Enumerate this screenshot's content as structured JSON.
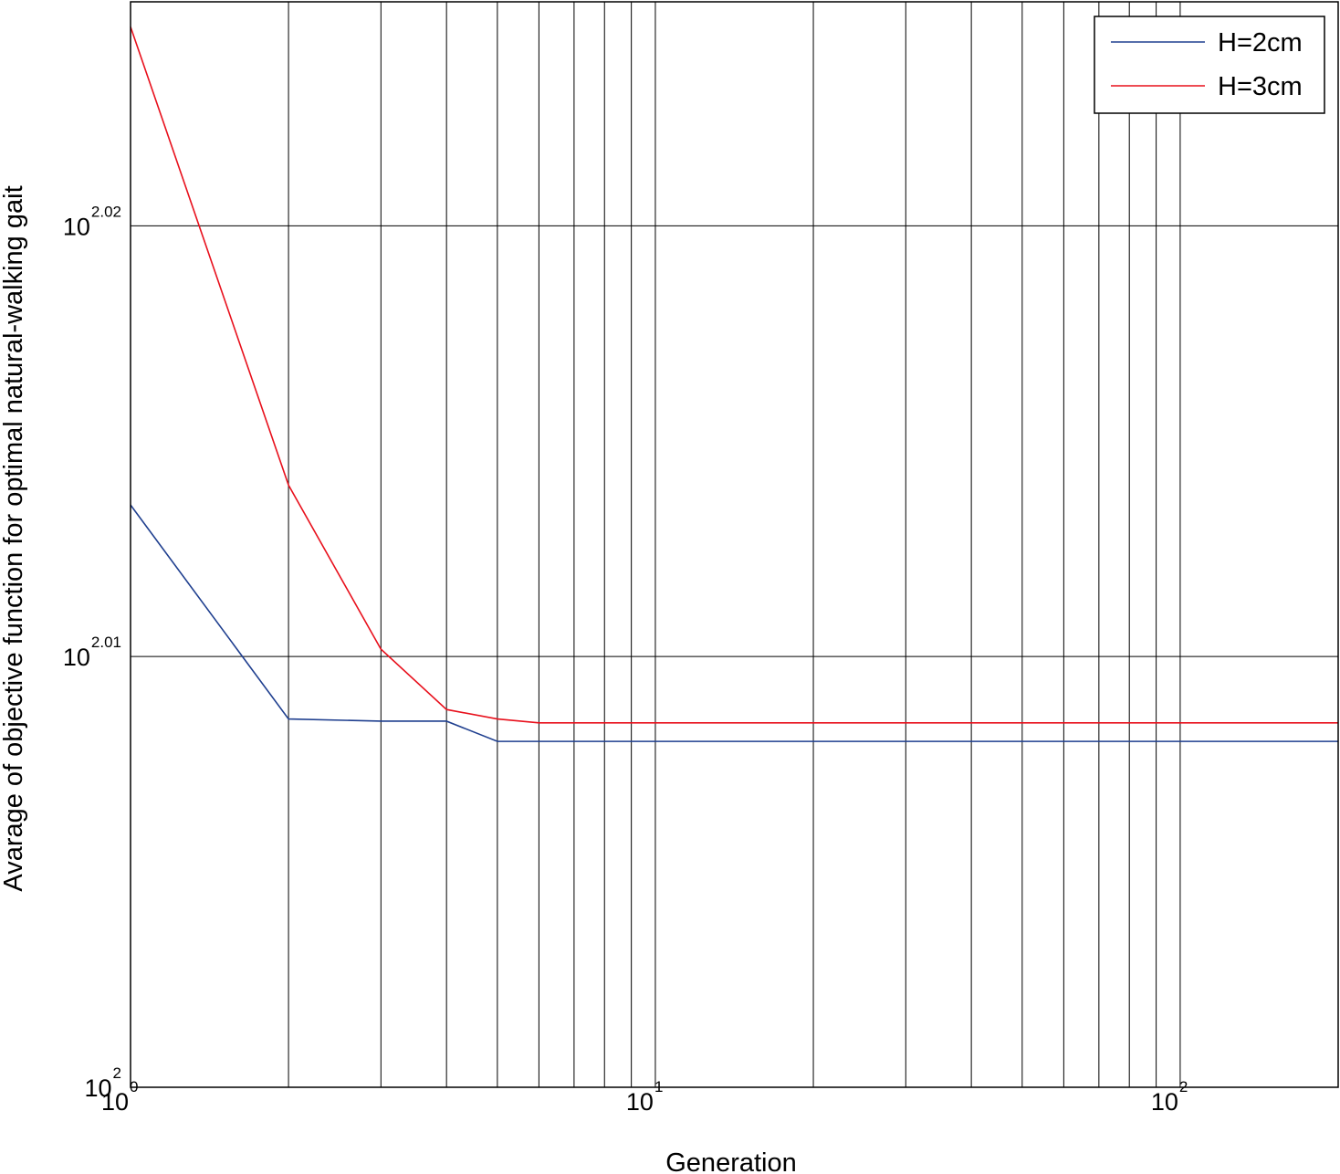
{
  "chart_data": {
    "type": "line",
    "xscale": "log",
    "yscale": "log",
    "xlim": [
      1,
      200
    ],
    "ylim_log10": [
      2.0,
      2.0252
    ],
    "xlabel": "Generation",
    "ylabel": "Avarage of objective function for optimal natural-walking gait",
    "grid": true,
    "legend_position": "top-right",
    "x_ticks": [
      {
        "value": 1,
        "base": "10",
        "exp": "0"
      },
      {
        "value": 10,
        "base": "10",
        "exp": "1"
      },
      {
        "value": 100,
        "base": "10",
        "exp": "2"
      }
    ],
    "y_ticks": [
      {
        "log10": 2.0,
        "base": "10",
        "exp": "2"
      },
      {
        "log10": 2.01,
        "base": "10",
        "exp": "2.01"
      },
      {
        "log10": 2.02,
        "base": "10",
        "exp": "2.02"
      }
    ],
    "x_gridlines": [
      2,
      3,
      4,
      5,
      6,
      7,
      8,
      9,
      10,
      20,
      30,
      40,
      50,
      60,
      70,
      80,
      90,
      100
    ],
    "y_gridlines_log10": [
      2.01,
      2.02
    ],
    "x": [
      1,
      2,
      3,
      4,
      5,
      6,
      10,
      20,
      50,
      100,
      200
    ],
    "series": [
      {
        "name": "H=2cm",
        "color": "#1f3f8f",
        "log10_values": [
          2.01352,
          2.00855,
          2.0085,
          2.0085,
          2.00803,
          2.00803,
          2.00803,
          2.00803,
          2.00803,
          2.00803,
          2.00803
        ]
      },
      {
        "name": "H=3cm",
        "color": "#e8101c",
        "log10_values": [
          2.02462,
          2.01398,
          2.01017,
          2.00877,
          2.00855,
          2.00846,
          2.00846,
          2.00846,
          2.00846,
          2.00846,
          2.00846
        ]
      }
    ]
  }
}
